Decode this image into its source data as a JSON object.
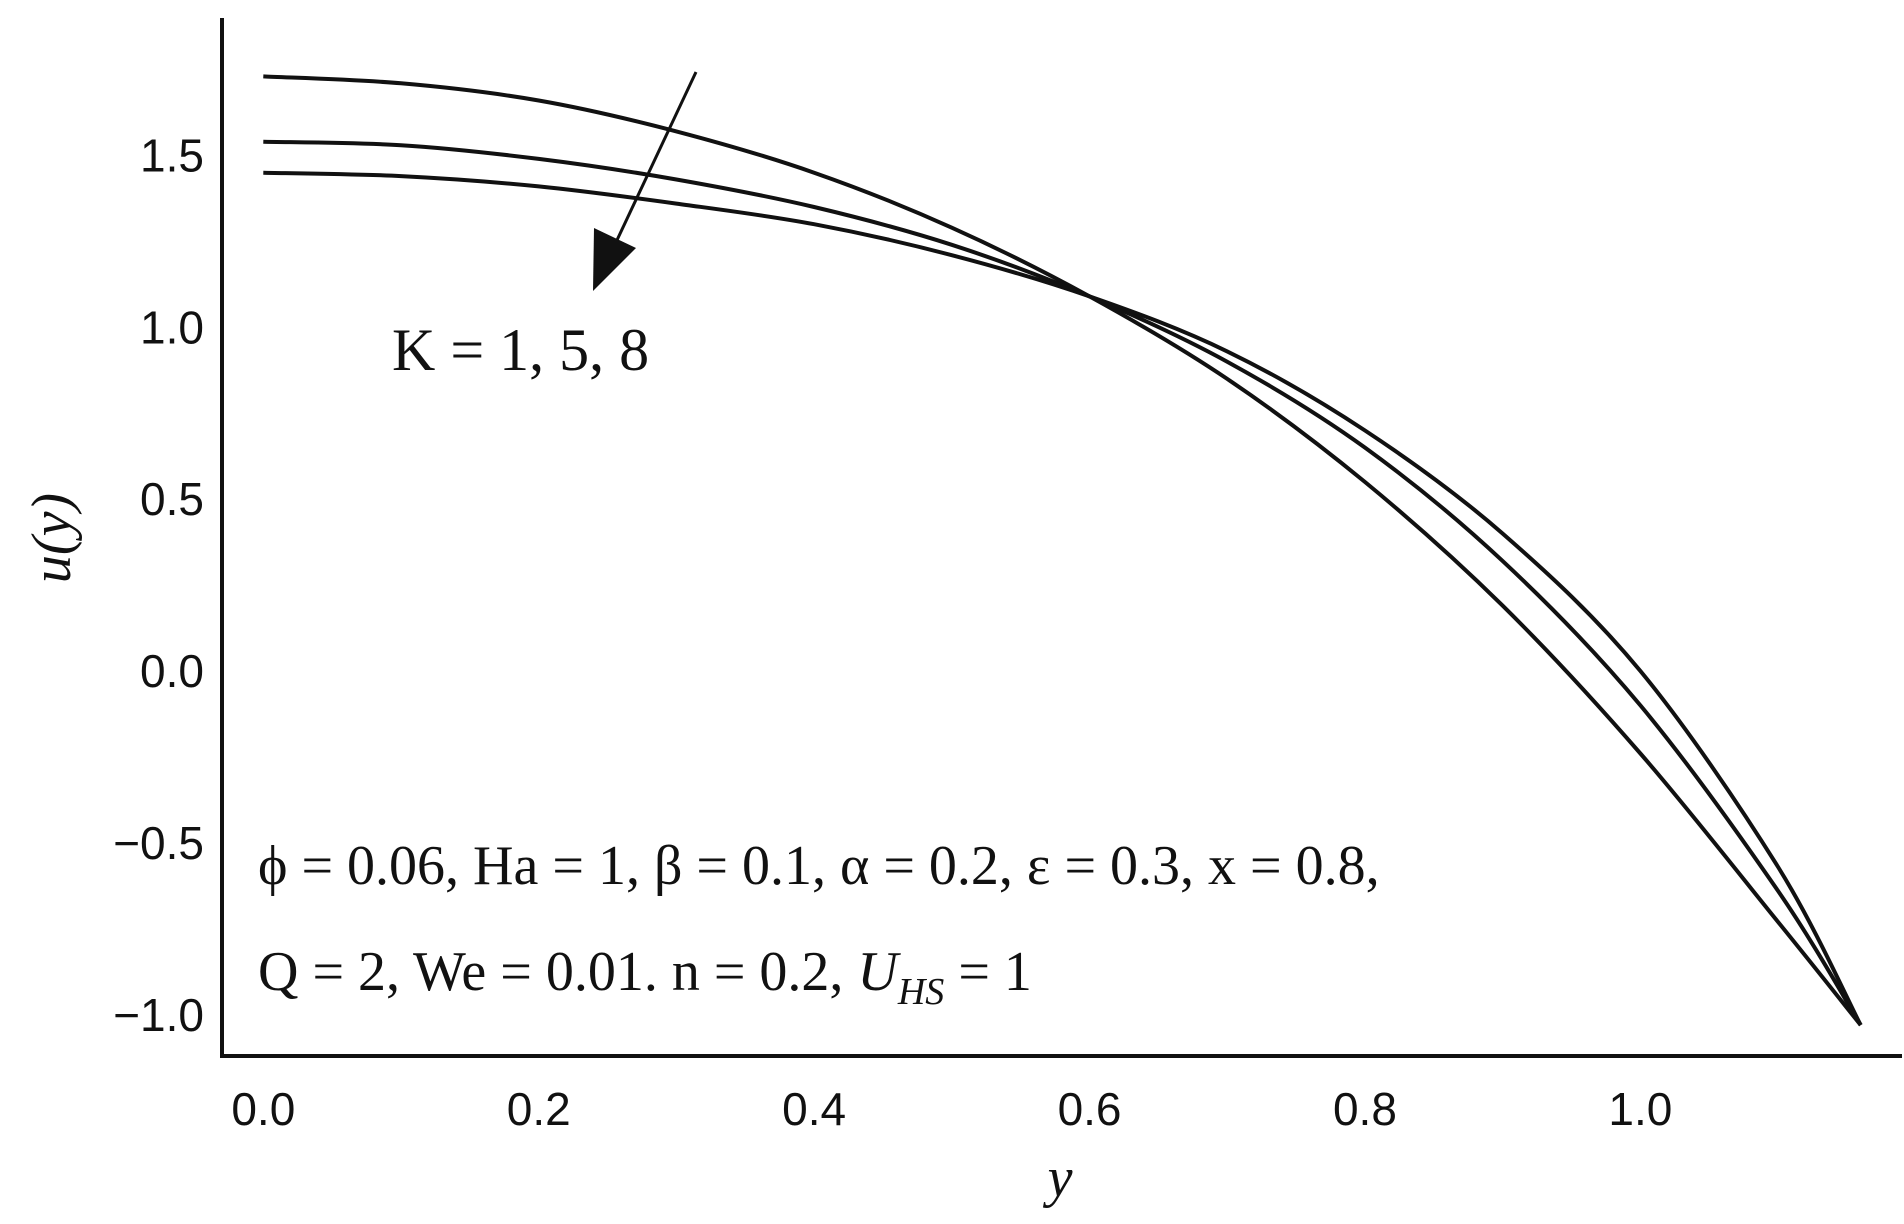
{
  "chart_data": {
    "type": "line",
    "title": "",
    "xlabel": "y",
    "ylabel": "u(y)",
    "xlim": [
      -0.03,
      1.19
    ],
    "ylim": [
      -1.12,
      1.9
    ],
    "xticks": [
      0.0,
      0.2,
      0.4,
      0.6,
      0.8,
      1.0
    ],
    "yticks": [
      -1.0,
      -0.5,
      0.0,
      0.5,
      1.0,
      1.5
    ],
    "xtick_labels": [
      "0.0",
      "0.2",
      "0.4",
      "0.6",
      "0.8",
      "1.0"
    ],
    "ytick_labels": [
      "−1.0",
      "−0.5",
      "0.0",
      "0.5",
      "1.0",
      "1.5"
    ],
    "grid": false,
    "series": [
      {
        "x": [
          0.0,
          0.1,
          0.2,
          0.3,
          0.4,
          0.5,
          0.6,
          0.7,
          0.8,
          0.9,
          1.0,
          1.1,
          1.16
        ],
        "y": [
          1.73,
          1.71,
          1.66,
          1.57,
          1.45,
          1.29,
          1.09,
          0.85,
          0.55,
          0.19,
          -0.24,
          -0.73,
          -1.03
        ]
      },
      {
        "x": [
          0.0,
          0.1,
          0.2,
          0.3,
          0.4,
          0.5,
          0.6,
          0.7,
          0.8,
          0.9,
          1.0,
          1.1,
          1.16
        ],
        "y": [
          1.54,
          1.53,
          1.49,
          1.43,
          1.35,
          1.24,
          1.09,
          0.9,
          0.65,
          0.32,
          -0.1,
          -0.64,
          -1.03
        ]
      },
      {
        "x": [
          0.0,
          0.1,
          0.2,
          0.3,
          0.4,
          0.5,
          0.6,
          0.7,
          0.8,
          0.9,
          1.0,
          1.1,
          1.16
        ],
        "y": [
          1.45,
          1.44,
          1.41,
          1.36,
          1.3,
          1.21,
          1.09,
          0.93,
          0.7,
          0.4,
          0.0,
          -0.57,
          -1.03
        ]
      }
    ],
    "annotations": {
      "arrow_label": "K = 1, 5, 8",
      "params_line1": "ϕ = 0.06, Ha = 1, β = 0.1, α = 0.2, ε = 0.3, x = 0.8,",
      "params_line2_prefix": "Q = 2, We = 0.01. n = 0.2, ",
      "params_line2_symbol": "U",
      "params_line2_subscript": "HS",
      "params_line2_suffix": " = 1"
    }
  }
}
